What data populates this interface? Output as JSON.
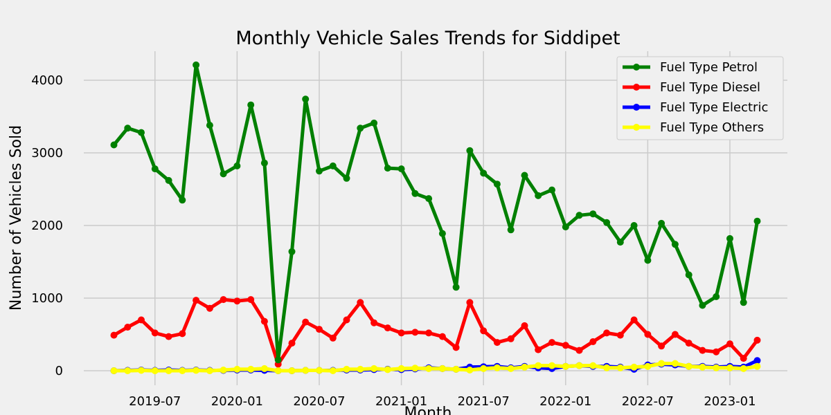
{
  "chart_data": {
    "type": "line",
    "title": "Monthly Vehicle Sales Trends for Siddipet",
    "xlabel": "Month",
    "ylabel": "Number of Vehicles Sold",
    "x_start": "2019-04",
    "x_ticks": [
      "2019-07",
      "2020-01",
      "2020-07",
      "2021-01",
      "2021-07",
      "2022-01",
      "2022-07",
      "2023-01"
    ],
    "y_ticks": [
      0,
      1000,
      2000,
      3000,
      4000
    ],
    "ylim": [
      -200,
      4400
    ],
    "grid": true,
    "legend_position": "top-right",
    "series": [
      {
        "name": "Fuel Type Petrol",
        "color": "#008000",
        "values": [
          3110,
          3340,
          3280,
          2780,
          2620,
          2350,
          4210,
          3380,
          2710,
          2820,
          3660,
          2860,
          150,
          1640,
          3740,
          2750,
          2820,
          2650,
          3340,
          3410,
          2790,
          2780,
          2440,
          2370,
          1890,
          1150,
          3030,
          2720,
          2570,
          1940,
          2690,
          2410,
          2490,
          1980,
          2140,
          2160,
          2040,
          1770,
          2000,
          1520,
          2030,
          1740,
          1320,
          900,
          1020,
          1820,
          940,
          2060
        ]
      },
      {
        "name": "Fuel Type Diesel",
        "color": "#ff0000",
        "values": [
          490,
          600,
          700,
          520,
          470,
          510,
          970,
          860,
          980,
          960,
          980,
          680,
          90,
          380,
          670,
          570,
          450,
          700,
          940,
          660,
          590,
          520,
          530,
          520,
          470,
          320,
          940,
          550,
          390,
          440,
          620,
          290,
          390,
          350,
          280,
          400,
          520,
          490,
          700,
          500,
          340,
          500,
          380,
          280,
          260,
          370,
          170,
          420
        ]
      },
      {
        "name": "Fuel Type Electric",
        "color": "#0000ff",
        "values": [
          0,
          5,
          10,
          5,
          10,
          5,
          10,
          5,
          5,
          10,
          10,
          5,
          0,
          0,
          5,
          5,
          5,
          10,
          10,
          15,
          20,
          15,
          25,
          40,
          30,
          20,
          50,
          55,
          60,
          40,
          60,
          40,
          30,
          60,
          70,
          60,
          60,
          50,
          20,
          80,
          90,
          80,
          60,
          60,
          50,
          60,
          50,
          140
        ]
      },
      {
        "name": "Fuel Type Others",
        "color": "#ffff00",
        "values": [
          0,
          0,
          5,
          0,
          0,
          0,
          5,
          0,
          10,
          20,
          20,
          30,
          0,
          0,
          5,
          5,
          0,
          20,
          20,
          30,
          15,
          30,
          35,
          30,
          30,
          20,
          10,
          30,
          40,
          30,
          50,
          70,
          70,
          60,
          70,
          70,
          40,
          40,
          50,
          60,
          100,
          100,
          60,
          50,
          40,
          40,
          30,
          60
        ]
      }
    ]
  }
}
